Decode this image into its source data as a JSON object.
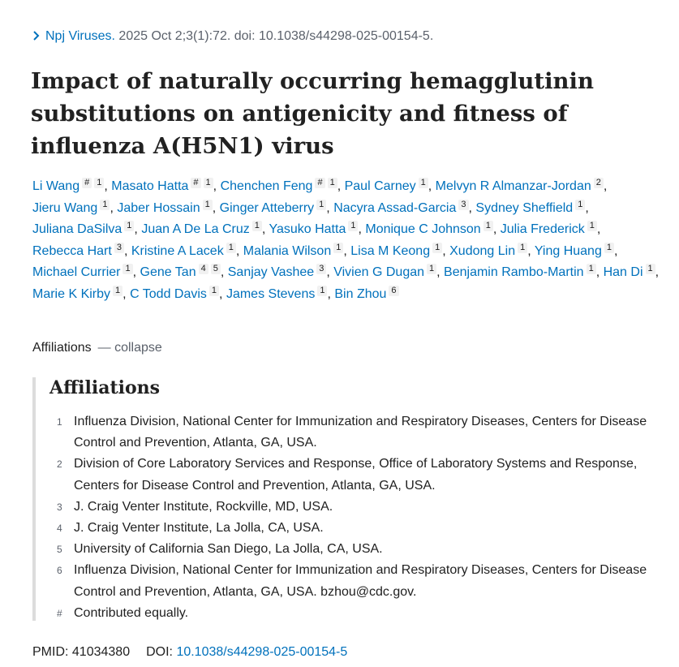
{
  "citation": {
    "journal": "Npj Viruses.",
    "details": "2025 Oct 2;3(1):72. doi: 10.1038/s44298-025-00154-5."
  },
  "title": "Impact of naturally occurring hemagglutinin substitutions on antigenicity and fitness of influenza A(H5N1) virus",
  "authors": [
    {
      "name": "Li Wang",
      "sups": [
        "#",
        "1"
      ]
    },
    {
      "name": "Masato Hatta",
      "sups": [
        "#",
        "1"
      ]
    },
    {
      "name": "Chenchen Feng",
      "sups": [
        "#",
        "1"
      ]
    },
    {
      "name": "Paul Carney",
      "sups": [
        "1"
      ]
    },
    {
      "name": "Melvyn R Almanzar-Jordan",
      "sups": [
        "2"
      ]
    },
    {
      "name": "Jieru Wang",
      "sups": [
        "1"
      ]
    },
    {
      "name": "Jaber Hossain",
      "sups": [
        "1"
      ]
    },
    {
      "name": "Ginger Atteberry",
      "sups": [
        "1"
      ]
    },
    {
      "name": "Nacyra Assad-Garcia",
      "sups": [
        "3"
      ]
    },
    {
      "name": "Sydney Sheffield",
      "sups": [
        "1"
      ]
    },
    {
      "name": "Juliana DaSilva",
      "sups": [
        "1"
      ]
    },
    {
      "name": "Juan A De La Cruz",
      "sups": [
        "1"
      ]
    },
    {
      "name": "Yasuko Hatta",
      "sups": [
        "1"
      ]
    },
    {
      "name": "Monique C Johnson",
      "sups": [
        "1"
      ]
    },
    {
      "name": "Julia Frederick",
      "sups": [
        "1"
      ]
    },
    {
      "name": "Rebecca Hart",
      "sups": [
        "3"
      ]
    },
    {
      "name": "Kristine A Lacek",
      "sups": [
        "1"
      ]
    },
    {
      "name": "Malania Wilson",
      "sups": [
        "1"
      ]
    },
    {
      "name": "Lisa M Keong",
      "sups": [
        "1"
      ]
    },
    {
      "name": "Xudong Lin",
      "sups": [
        "1"
      ]
    },
    {
      "name": "Ying Huang",
      "sups": [
        "1"
      ]
    },
    {
      "name": "Michael Currier",
      "sups": [
        "1"
      ]
    },
    {
      "name": "Gene Tan",
      "sups": [
        "4",
        "5"
      ]
    },
    {
      "name": "Sanjay Vashee",
      "sups": [
        "3"
      ]
    },
    {
      "name": "Vivien G Dugan",
      "sups": [
        "1"
      ]
    },
    {
      "name": "Benjamin Rambo-Martin",
      "sups": [
        "1"
      ]
    },
    {
      "name": "Han Di",
      "sups": [
        "1"
      ]
    },
    {
      "name": "Marie K Kirby",
      "sups": [
        "1"
      ]
    },
    {
      "name": "C Todd Davis",
      "sups": [
        "1"
      ]
    },
    {
      "name": "James Stevens",
      "sups": [
        "1"
      ]
    },
    {
      "name": "Bin Zhou",
      "sups": [
        "6"
      ]
    }
  ],
  "affiliations_toggle": {
    "label": "Affiliations",
    "action": "collapse"
  },
  "affiliations": {
    "heading": "Affiliations",
    "items": [
      {
        "marker": "1",
        "text": "Influenza Division, National Center for Immunization and Respiratory Diseases, Centers for Disease Control and Prevention, Atlanta, GA, USA."
      },
      {
        "marker": "2",
        "text": "Division of Core Laboratory Services and Response, Office of Laboratory Systems and Response, Centers for Disease Control and Prevention, Atlanta, GA, USA."
      },
      {
        "marker": "3",
        "text": "J. Craig Venter Institute, Rockville, MD, USA."
      },
      {
        "marker": "4",
        "text": "J. Craig Venter Institute, La Jolla, CA, USA."
      },
      {
        "marker": "5",
        "text": "University of California San Diego, La Jolla, CA, USA."
      },
      {
        "marker": "6",
        "text": "Influenza Division, National Center for Immunization and Respiratory Diseases, Centers for Disease Control and Prevention, Atlanta, GA, USA. bzhou@cdc.gov."
      },
      {
        "marker": "#",
        "text": "Contributed equally."
      }
    ]
  },
  "ids": {
    "pmid_label": "PMID:",
    "pmid": "41034380",
    "doi_label": "DOI:",
    "doi": "10.1038/s44298-025-00154-5"
  }
}
